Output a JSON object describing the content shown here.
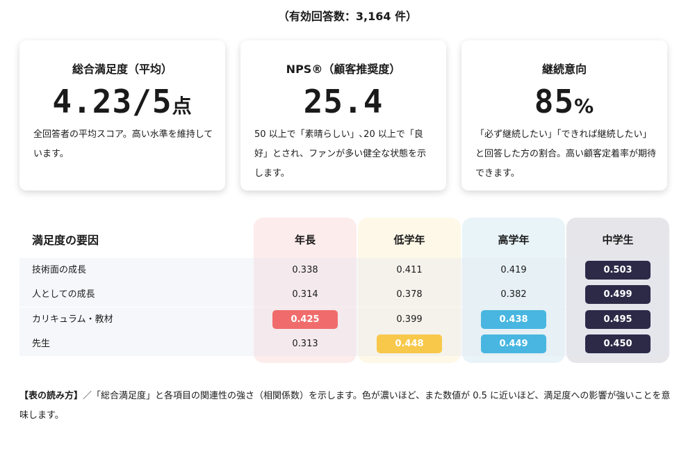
{
  "response_count": "（有効回答数：3,164 件）",
  "cards": [
    {
      "title": "総合満足度（平均）",
      "value": "4.23/5",
      "unit": "点",
      "description": "全回答者の平均スコア。高い水準を維持しています。"
    },
    {
      "title": "NPS®（顧客推奨度）",
      "value": "25.4",
      "unit": "",
      "description": "50 以上で「素晴らしい」､20 以上で「良好」とされ、ファンが多い健全な状態を示します。"
    },
    {
      "title": "継続意向",
      "value": "85",
      "unit": "%",
      "description": "「必ず継続したい」「できれば継続したい」と回答した方の割合。高い顧客定着率が期待できます。"
    }
  ],
  "table": {
    "header_label": "満足度の要因",
    "columns": [
      {
        "label": "年長",
        "bg": "#fdecec"
      },
      {
        "label": "低学年",
        "bg": "#fef8e8"
      },
      {
        "label": "高学年",
        "bg": "#e8f4f8"
      },
      {
        "label": "中学生",
        "bg": "#e6e5ea"
      }
    ],
    "rows": [
      {
        "label": "技術面の成長",
        "values": [
          "0.338",
          "0.411",
          "0.419",
          "0.503"
        ],
        "highlight": [
          null,
          null,
          null,
          "dark"
        ]
      },
      {
        "label": "人としての成長",
        "values": [
          "0.314",
          "0.378",
          "0.382",
          "0.499"
        ],
        "highlight": [
          null,
          null,
          null,
          "dark"
        ]
      },
      {
        "label": "カリキュラム・教材",
        "values": [
          "0.425",
          "0.399",
          "0.438",
          "0.495"
        ],
        "highlight": [
          "red",
          null,
          "blue",
          "dark"
        ]
      },
      {
        "label": "先生",
        "values": [
          "0.313",
          "0.448",
          "0.449",
          "0.450"
        ],
        "highlight": [
          null,
          "yellow",
          "blue",
          "dark"
        ]
      }
    ],
    "highlight_colors": {
      "red": "#f06c6c",
      "yellow": "#f8c84b",
      "blue": "#48b6e0",
      "dark": "#2d2a48"
    }
  },
  "footnote": {
    "heading": "【表の読み方】",
    "text": "／「総合満足度」と各項目の関連性の強さ（相関係数）を示します。色が濃いほど、また数値が 0.5 に近いほど、満足度への影響が強いことを意味します。"
  }
}
